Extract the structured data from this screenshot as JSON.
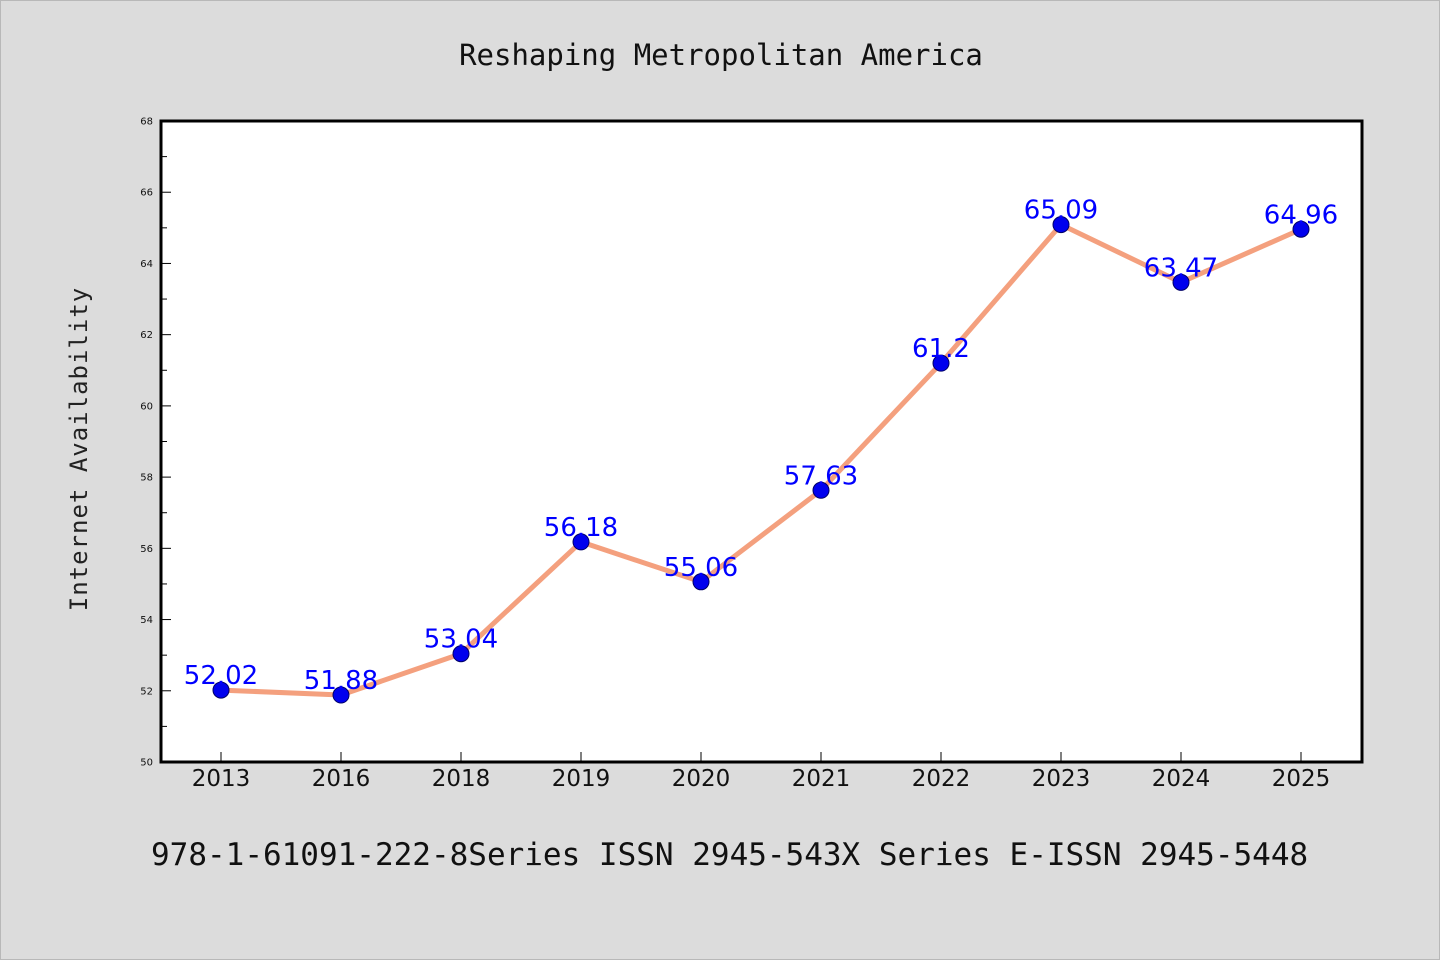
{
  "colors": {
    "background": "#dcdcdc",
    "plot_background": "#ffffff",
    "line": "#f4a07e",
    "marker": "#0000ee",
    "data_label": "#0000ff",
    "axis": "#000000"
  },
  "footer": {
    "text": "978-1-61091-222-8Series ISSN 2945-543X Series E-ISSN 2945-5448"
  },
  "chart_data": {
    "type": "line",
    "title": "Reshaping Metropolitan America",
    "xlabel": "",
    "ylabel": "Internet Availability",
    "categories": [
      "2013",
      "2016",
      "2018",
      "2019",
      "2020",
      "2021",
      "2022",
      "2023",
      "2024",
      "2025"
    ],
    "series": [
      {
        "values": [
          52.02,
          51.88,
          53.04,
          56.18,
          55.06,
          57.63,
          61.2,
          65.09,
          63.47,
          64.96
        ],
        "labels": [
          "52.02",
          "51.88",
          "53.04",
          "56.18",
          "55.06",
          "57.63",
          "61.2",
          "65.09",
          "63.47",
          "64.96"
        ]
      }
    ],
    "ylim": [
      50,
      68
    ],
    "yticks": [
      50,
      52,
      54,
      56,
      58,
      60,
      62,
      64,
      66,
      68
    ],
    "grid": false,
    "legend": "none"
  }
}
